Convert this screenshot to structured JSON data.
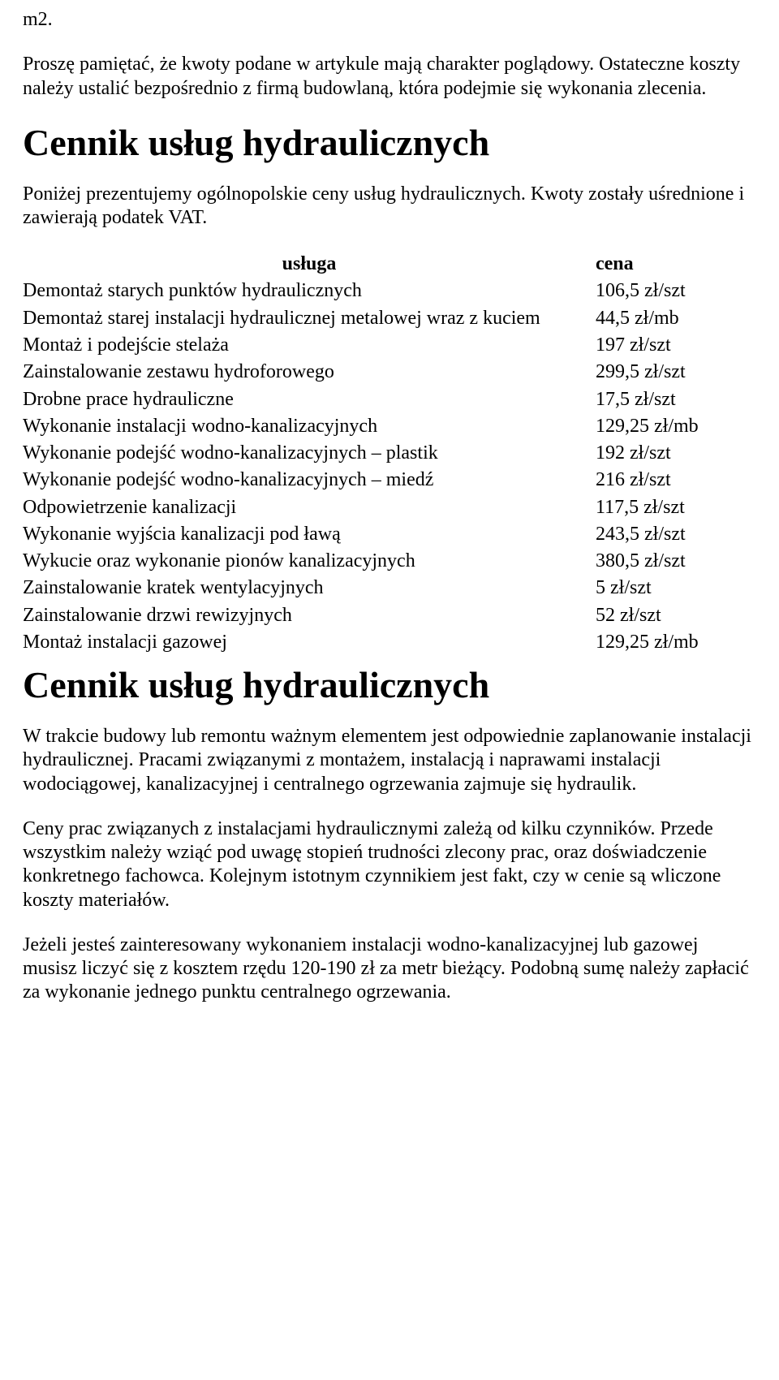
{
  "top_fragment": "m2.",
  "note_para": "Proszę pamiętać, że kwoty podane w artykule mają charakter poglądowy. Ostateczne koszty należy ustalić bezpośrednio z firmą budowlaną, która podejmie się wykonania zlecenia.",
  "heading1": "Cennik usług hydraulicznych",
  "intro1": "Poniżej prezentujemy ogólnopolskie ceny usług hydraulicznych. Kwoty zostały uśrednione i zawierają podatek VAT.",
  "table": {
    "head_service": "usługa",
    "head_price": "cena",
    "rows": [
      {
        "service": "Demontaż starych punktów hydraulicznych",
        "price": "106,5 zł/szt"
      },
      {
        "service": "Demontaż starej instalacji hydraulicznej metalowej wraz z kuciem",
        "price": "44,5 zł/mb"
      },
      {
        "service": "Montaż i podejście stelaża",
        "price": "197 zł/szt"
      },
      {
        "service": "Zainstalowanie zestawu hydroforowego",
        "price": "299,5 zł/szt"
      },
      {
        "service": "Drobne prace hydrauliczne",
        "price": "17,5 zł/szt"
      },
      {
        "service": "Wykonanie instalacji wodno-kanalizacyjnych",
        "price": "129,25 zł/mb"
      },
      {
        "service": "Wykonanie podejść wodno-kanalizacyjnych – plastik",
        "price": "192 zł/szt"
      },
      {
        "service": "Wykonanie podejść wodno-kanalizacyjnych – miedź",
        "price": "216 zł/szt"
      },
      {
        "service": "Odpowietrzenie kanalizacji",
        "price": "117,5 zł/szt"
      },
      {
        "service": "Wykonanie wyjścia kanalizacji pod ławą",
        "price": "243,5 zł/szt"
      },
      {
        "service": "Wykucie oraz wykonanie pionów kanalizacyjnych",
        "price": "380,5 zł/szt"
      },
      {
        "service": "Zainstalowanie kratek wentylacyjnych",
        "price": "5 zł/szt"
      },
      {
        "service": "Zainstalowanie drzwi rewizyjnych",
        "price": "52 zł/szt"
      },
      {
        "service": "Montaż instalacji gazowej",
        "price": "129,25 zł/mb"
      }
    ]
  },
  "heading2": "Cennik usług hydraulicznych",
  "p2a": "W trakcie budowy lub remontu ważnym elementem jest odpowiednie zaplanowanie instalacji hydraulicznej. Pracami związanymi z montażem, instalacją i naprawami instalacji wodociągowej, kanalizacyjnej i centralnego ogrzewania zajmuje się hydraulik.",
  "p2b": "Ceny prac związanych z instalacjami hydraulicznymi zależą od kilku czynników. Przede wszystkim należy wziąć pod uwagę stopień trudności zlecony prac, oraz doświadczenie konkretnego fachowca. Kolejnym istotnym czynnikiem jest fakt, czy w cenie są wliczone koszty materiałów.",
  "p2c": "Jeżeli jesteś zainteresowany wykonaniem instalacji wodno-kanalizacyjnej lub gazowej musisz liczyć się z kosztem rzędu 120-190 zł za metr bieżący. Podobną sumę należy zapłacić za wykonanie jednego punktu centralnego ogrzewania."
}
